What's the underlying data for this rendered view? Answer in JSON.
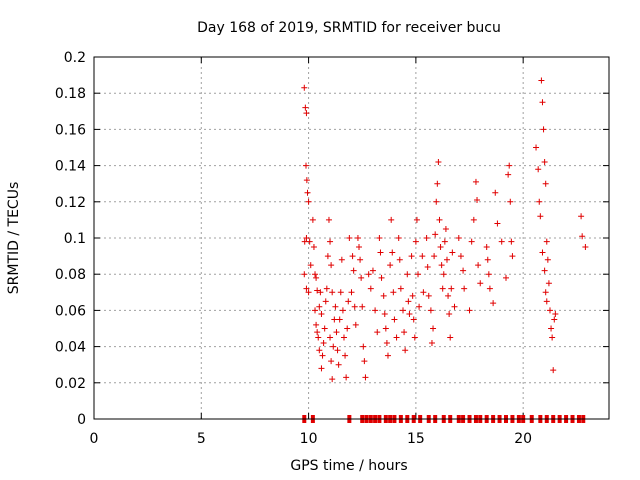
{
  "chart_data": {
    "type": "scatter",
    "title": "Day 168 of 2019, SRMTID for receiver bucu",
    "xlabel": "GPS time / hours",
    "ylabel": "SRMTID / TECUs",
    "xlim": [
      0,
      24
    ],
    "ylim": [
      0,
      0.2
    ],
    "xticks": [
      0,
      5,
      10,
      15,
      20
    ],
    "xtick_labels": [
      "0",
      "5",
      "10",
      "15",
      "20"
    ],
    "yticks": [
      0,
      0.02,
      0.04,
      0.06,
      0.08,
      0.1,
      0.12,
      0.14,
      0.16,
      0.18,
      0.2
    ],
    "ytick_labels": [
      "0",
      "0.02",
      "0.04",
      "0.06",
      "0.08",
      "0.1",
      "0.12",
      "0.14",
      "0.16",
      "0.18",
      "0.2"
    ],
    "grid": true,
    "marker": "+",
    "marker_color": "#e00000",
    "series": [
      {
        "name": "SRMTID",
        "points": [
          [
            9.8,
            0.183
          ],
          [
            9.85,
            0.172
          ],
          [
            9.9,
            0.169
          ],
          [
            9.88,
            0.14
          ],
          [
            9.92,
            0.132
          ],
          [
            9.95,
            0.125
          ],
          [
            10.0,
            0.12
          ],
          [
            9.82,
            0.098
          ],
          [
            9.9,
            0.1
          ],
          [
            10.05,
            0.098
          ],
          [
            9.8,
            0.08
          ],
          [
            9.9,
            0.072
          ],
          [
            10.0,
            0.07
          ],
          [
            10.1,
            0.085
          ],
          [
            10.2,
            0.11
          ],
          [
            10.25,
            0.095
          ],
          [
            10.3,
            0.08
          ],
          [
            10.35,
            0.078
          ],
          [
            10.4,
            0.071
          ],
          [
            10.3,
            0.06
          ],
          [
            10.35,
            0.052
          ],
          [
            10.4,
            0.048
          ],
          [
            10.45,
            0.045
          ],
          [
            10.5,
            0.062
          ],
          [
            10.55,
            0.07
          ],
          [
            10.6,
            0.058
          ],
          [
            10.5,
            0.038
          ],
          [
            10.6,
            0.028
          ],
          [
            10.65,
            0.035
          ],
          [
            10.7,
            0.042
          ],
          [
            10.75,
            0.05
          ],
          [
            10.8,
            0.065
          ],
          [
            10.85,
            0.072
          ],
          [
            10.9,
            0.09
          ],
          [
            10.95,
            0.11
          ],
          [
            11.0,
            0.098
          ],
          [
            11.05,
            0.085
          ],
          [
            11.1,
            0.07
          ],
          [
            11.0,
            0.045
          ],
          [
            11.05,
            0.032
          ],
          [
            11.1,
            0.022
          ],
          [
            11.15,
            0.04
          ],
          [
            11.2,
            0.055
          ],
          [
            11.25,
            0.062
          ],
          [
            11.3,
            0.048
          ],
          [
            11.35,
            0.038
          ],
          [
            11.4,
            0.03
          ],
          [
            11.45,
            0.055
          ],
          [
            11.5,
            0.07
          ],
          [
            11.55,
            0.088
          ],
          [
            11.6,
            0.06
          ],
          [
            11.65,
            0.045
          ],
          [
            11.7,
            0.035
          ],
          [
            11.75,
            0.023
          ],
          [
            11.8,
            0.05
          ],
          [
            11.85,
            0.065
          ],
          [
            11.9,
            0.1
          ],
          [
            12.0,
            0.07
          ],
          [
            12.05,
            0.09
          ],
          [
            12.1,
            0.082
          ],
          [
            12.15,
            0.062
          ],
          [
            12.2,
            0.052
          ],
          [
            12.3,
            0.1
          ],
          [
            12.35,
            0.095
          ],
          [
            12.4,
            0.088
          ],
          [
            12.45,
            0.078
          ],
          [
            12.5,
            0.062
          ],
          [
            12.55,
            0.04
          ],
          [
            12.6,
            0.032
          ],
          [
            12.65,
            0.023
          ],
          [
            12.8,
            0.08
          ],
          [
            12.9,
            0.072
          ],
          [
            13.0,
            0.082
          ],
          [
            13.1,
            0.06
          ],
          [
            13.2,
            0.048
          ],
          [
            13.3,
            0.1
          ],
          [
            13.35,
            0.092
          ],
          [
            13.4,
            0.078
          ],
          [
            13.5,
            0.068
          ],
          [
            13.55,
            0.058
          ],
          [
            13.6,
            0.05
          ],
          [
            13.65,
            0.042
          ],
          [
            13.7,
            0.035
          ],
          [
            13.8,
            0.085
          ],
          [
            13.85,
            0.11
          ],
          [
            13.9,
            0.092
          ],
          [
            13.95,
            0.07
          ],
          [
            14.0,
            0.055
          ],
          [
            14.1,
            0.045
          ],
          [
            14.2,
            0.1
          ],
          [
            14.25,
            0.088
          ],
          [
            14.3,
            0.072
          ],
          [
            14.4,
            0.06
          ],
          [
            14.45,
            0.048
          ],
          [
            14.5,
            0.038
          ],
          [
            14.6,
            0.08
          ],
          [
            14.65,
            0.065
          ],
          [
            14.7,
            0.058
          ],
          [
            14.8,
            0.09
          ],
          [
            14.85,
            0.068
          ],
          [
            14.9,
            0.055
          ],
          [
            14.95,
            0.045
          ],
          [
            15.0,
            0.098
          ],
          [
            15.05,
            0.11
          ],
          [
            15.1,
            0.08
          ],
          [
            15.15,
            0.062
          ],
          [
            15.3,
            0.09
          ],
          [
            15.35,
            0.07
          ],
          [
            15.5,
            0.1
          ],
          [
            15.55,
            0.084
          ],
          [
            15.6,
            0.068
          ],
          [
            15.7,
            0.06
          ],
          [
            15.75,
            0.042
          ],
          [
            15.8,
            0.05
          ],
          [
            15.85,
            0.09
          ],
          [
            15.9,
            0.102
          ],
          [
            15.95,
            0.12
          ],
          [
            16.0,
            0.13
          ],
          [
            16.05,
            0.142
          ],
          [
            16.1,
            0.11
          ],
          [
            16.15,
            0.095
          ],
          [
            16.2,
            0.085
          ],
          [
            16.25,
            0.072
          ],
          [
            16.3,
            0.08
          ],
          [
            16.35,
            0.098
          ],
          [
            16.4,
            0.105
          ],
          [
            16.45,
            0.088
          ],
          [
            16.5,
            0.068
          ],
          [
            16.55,
            0.058
          ],
          [
            16.6,
            0.045
          ],
          [
            16.65,
            0.072
          ],
          [
            16.7,
            0.092
          ],
          [
            16.8,
            0.062
          ],
          [
            17.0,
            0.1
          ],
          [
            17.1,
            0.09
          ],
          [
            17.2,
            0.082
          ],
          [
            17.25,
            0.072
          ],
          [
            17.5,
            0.06
          ],
          [
            17.6,
            0.098
          ],
          [
            17.7,
            0.11
          ],
          [
            17.8,
            0.131
          ],
          [
            17.85,
            0.121
          ],
          [
            17.9,
            0.085
          ],
          [
            18.0,
            0.075
          ],
          [
            18.3,
            0.095
          ],
          [
            18.35,
            0.088
          ],
          [
            18.4,
            0.08
          ],
          [
            18.45,
            0.072
          ],
          [
            18.6,
            0.064
          ],
          [
            18.7,
            0.125
          ],
          [
            18.8,
            0.108
          ],
          [
            19.0,
            0.098
          ],
          [
            19.2,
            0.078
          ],
          [
            19.3,
            0.135
          ],
          [
            19.35,
            0.14
          ],
          [
            19.4,
            0.12
          ],
          [
            19.45,
            0.098
          ],
          [
            19.5,
            0.09
          ],
          [
            20.6,
            0.15
          ],
          [
            20.7,
            0.138
          ],
          [
            20.75,
            0.12
          ],
          [
            20.8,
            0.112
          ],
          [
            20.85,
            0.187
          ],
          [
            20.9,
            0.175
          ],
          [
            20.95,
            0.16
          ],
          [
            21.0,
            0.142
          ],
          [
            21.05,
            0.13
          ],
          [
            21.1,
            0.098
          ],
          [
            21.15,
            0.088
          ],
          [
            21.2,
            0.075
          ],
          [
            21.25,
            0.06
          ],
          [
            21.3,
            0.05
          ],
          [
            21.35,
            0.045
          ],
          [
            21.4,
            0.027
          ],
          [
            21.45,
            0.055
          ],
          [
            21.5,
            0.058
          ],
          [
            20.9,
            0.092
          ],
          [
            21.0,
            0.082
          ],
          [
            21.05,
            0.07
          ],
          [
            21.1,
            0.065
          ],
          [
            22.7,
            0.112
          ],
          [
            22.75,
            0.101
          ],
          [
            22.9,
            0.095
          ]
        ]
      }
    ],
    "zero_points_x": [
      9.8,
      10.2,
      11.9,
      12.5,
      12.7,
      12.9,
      13.1,
      13.3,
      13.6,
      13.8,
      14.0,
      14.3,
      14.6,
      14.9,
      15.2,
      15.6,
      15.9,
      16.3,
      16.6,
      17.0,
      17.2,
      17.5,
      17.8,
      18.0,
      18.3,
      18.6,
      18.9,
      19.2,
      19.5,
      19.8,
      20.0,
      20.4,
      20.8,
      21.1,
      21.4,
      21.7,
      22.0,
      22.3,
      22.6,
      22.8
    ]
  }
}
